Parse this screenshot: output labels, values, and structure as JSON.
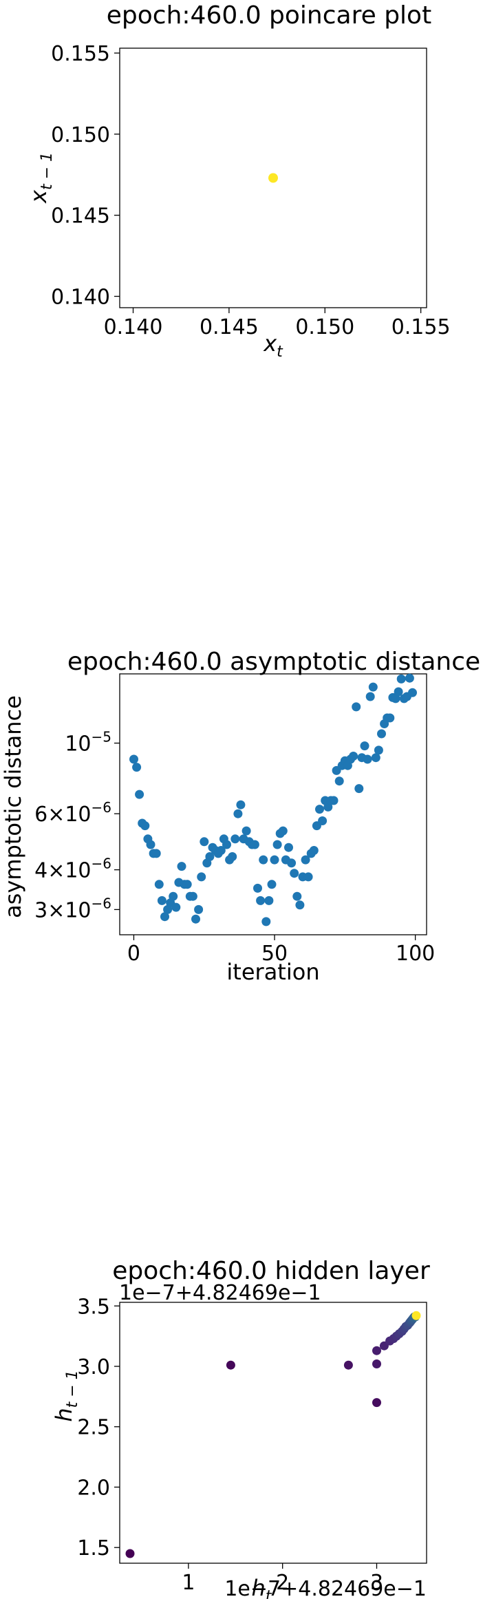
{
  "charts": [
    {
      "title": "epoch:460.0 poincare plot",
      "xlabel_base": "x",
      "xlabel_sub": "t",
      "ylabel_base": "x",
      "ylabel_sub": "t − 1",
      "x_ticks": [
        "0.140",
        "0.145",
        "0.150",
        "0.155"
      ],
      "y_ticks": [
        "0.140",
        "0.145",
        "0.150",
        "0.155"
      ]
    },
    {
      "title": "epoch:460.0 asymptotic distance",
      "xlabel": "iteration",
      "ylabel": "asymptotic distance",
      "x_ticks": [
        "0",
        "50",
        "100"
      ]
    },
    {
      "title": "epoch:460.0 hidden layer",
      "xlabel_base": "h",
      "xlabel_sub": "t",
      "ylabel_base": "h",
      "ylabel_sub": "t − 1",
      "x_offset_text": "1e−7+4.82469e−1",
      "y_offset_text": "1e−7+4.82469e−1",
      "x_ticks": [
        "1",
        "2",
        "3"
      ],
      "y_ticks": [
        "1.5",
        "2.0",
        "2.5",
        "3.0",
        "3.5"
      ]
    }
  ],
  "chart_data": [
    {
      "type": "scatter",
      "title": "epoch:460.0 poincare plot",
      "xlabel": "x_t",
      "ylabel": "x_{t-1}",
      "xlim": [
        0.1393,
        0.1553
      ],
      "ylim": [
        0.1393,
        0.1553
      ],
      "points": [
        [
          0.1473,
          0.1473
        ]
      ],
      "color": "#fde725"
    },
    {
      "type": "scatter",
      "title": "epoch:460.0 asymptotic distance",
      "xlabel": "iteration",
      "ylabel": "asymptotic distance",
      "y_scale": "log",
      "xlim": [
        -5,
        104
      ],
      "ylim": [
        2.5e-06,
        1.65e-05
      ],
      "y_ticks": [
        {
          "value": 3e-06,
          "base": "3×10",
          "exp": "−6"
        },
        {
          "value": 4e-06,
          "base": "4×10",
          "exp": "−6"
        },
        {
          "value": 6e-06,
          "base": "6×10",
          "exp": "−6"
        },
        {
          "value": 1e-05,
          "base": "10",
          "exp": "−5"
        }
      ],
      "color": "#1f77b4",
      "x": [
        0,
        1,
        2,
        3,
        4,
        5,
        6,
        7,
        8,
        9,
        10,
        11,
        12,
        13,
        14,
        15,
        16,
        17,
        18,
        19,
        20,
        21,
        22,
        23,
        24,
        25,
        26,
        27,
        28,
        29,
        30,
        31,
        32,
        33,
        34,
        35,
        36,
        37,
        38,
        39,
        40,
        41,
        42,
        43,
        44,
        45,
        46,
        47,
        48,
        49,
        50,
        51,
        52,
        53,
        54,
        55,
        56,
        57,
        58,
        59,
        60,
        61,
        62,
        63,
        64,
        65,
        66,
        67,
        68,
        69,
        70,
        71,
        72,
        73,
        74,
        75,
        76,
        77,
        78,
        79,
        80,
        81,
        82,
        83,
        84,
        85,
        86,
        87,
        88,
        89,
        90,
        91,
        92,
        93,
        94,
        95,
        96,
        97,
        98,
        99
      ],
      "y": [
        8.9e-06,
        8.4e-06,
        6.9e-06,
        5.6e-06,
        5.5e-06,
        5e-06,
        4.8e-06,
        4.5e-06,
        4.5e-06,
        3.6e-06,
        3.2e-06,
        2.85e-06,
        3e-06,
        3.15e-06,
        3.3e-06,
        3.05e-06,
        3.65e-06,
        4.1e-06,
        3.6e-06,
        3.6e-06,
        3.3e-06,
        3.3e-06,
        2.8e-06,
        3e-06,
        3.8e-06,
        4.9e-06,
        4.2e-06,
        4.4e-06,
        4.7e-06,
        4.6e-06,
        4.5e-06,
        4.6e-06,
        5e-06,
        4.8e-06,
        4.3e-06,
        4.4e-06,
        5e-06,
        6e-06,
        6.4e-06,
        5e-06,
        5.3e-06,
        4.9e-06,
        4.8e-06,
        4.8e-06,
        3.5e-06,
        3.2e-06,
        4.3e-06,
        2.75e-06,
        3.2e-06,
        3.6e-06,
        4.3e-06,
        4.8e-06,
        5.2e-06,
        5.3e-06,
        4.3e-06,
        4.7e-06,
        4.2e-06,
        3.9e-06,
        3.3e-06,
        3.1e-06,
        3.8e-06,
        4.3e-06,
        3.8e-06,
        4.5e-06,
        4.6e-06,
        5.5e-06,
        6.2e-06,
        5.7e-06,
        6.6e-06,
        6.3e-06,
        6.6e-06,
        6.6e-06,
        8.2e-06,
        7.6e-06,
        8.5e-06,
        8.8e-06,
        8.5e-06,
        8.9e-06,
        9.1e-06,
        1.3e-05,
        7.2e-06,
        9e-06,
        9.8e-06,
        8.9e-06,
        1.4e-05,
        1.5e-05,
        9e-06,
        9.5e-06,
        1.07e-05,
        1.15e-05,
        1.2e-05,
        1.2e-05,
        1.39e-05,
        1.38e-05,
        1.45e-05,
        1.59e-05,
        1.38e-05,
        1.4e-05,
        1.6e-05,
        1.44e-05
      ]
    },
    {
      "type": "scatter",
      "title": "epoch:460.0 hidden layer",
      "xlabel": "h_t",
      "ylabel": "h_{t-1}",
      "offset": "1e-7+4.82469e-1",
      "xlim": [
        0.27,
        3.53
      ],
      "ylim": [
        1.37,
        3.53
      ],
      "colormap": "viridis (point order)",
      "x": [
        0.38,
        1.45,
        3.0,
        2.7,
        3.0,
        3.0,
        3.08,
        3.14,
        3.18,
        3.21,
        3.24,
        3.27,
        3.29,
        3.31,
        3.33,
        3.35,
        3.36,
        3.37,
        3.38,
        3.39,
        3.4,
        3.41,
        3.42
      ],
      "y": [
        1.45,
        3.01,
        2.7,
        3.01,
        3.02,
        3.13,
        3.17,
        3.21,
        3.23,
        3.25,
        3.27,
        3.29,
        3.31,
        3.33,
        3.34,
        3.36,
        3.37,
        3.38,
        3.39,
        3.4,
        3.41,
        3.41,
        3.42
      ]
    }
  ]
}
